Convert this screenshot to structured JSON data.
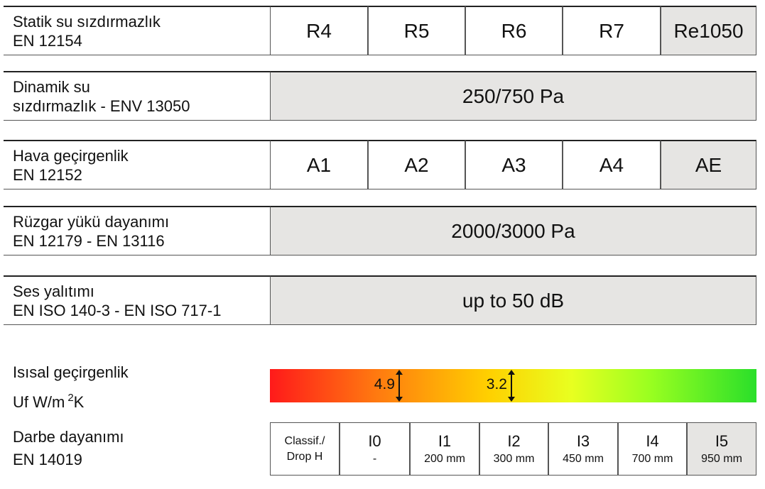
{
  "rows": [
    {
      "label": [
        "Statik su sızdırmazlık",
        "EN 12154"
      ],
      "cells": [
        "R4",
        "R5",
        "R6",
        "R7"
      ],
      "highlight": "Re1050"
    },
    {
      "label": [
        "Dinamik su",
        "sızdırmazlık - ENV 13050"
      ],
      "value": "250/750 Pa"
    },
    {
      "label": [
        "Hava geçirgenlik",
        "EN 12152"
      ],
      "cells": [
        "A1",
        "A2",
        "A3",
        "A4"
      ],
      "highlight": "AE"
    },
    {
      "label": [
        "Rüzgar yükü dayanımı",
        "EN 12179 - EN 13116"
      ],
      "value": "2000/3000 Pa"
    },
    {
      "label": [
        "Ses yalıtımı",
        "EN ISO 140-3 - EN ISO 717-1"
      ],
      "value": "up to 50 dB"
    }
  ],
  "thermal": {
    "label": "Isısal geçirgenlik",
    "unit": {
      "text": "Uf W/m",
      "sup": "2",
      "after": "K"
    },
    "markers": [
      4.9,
      3.2
    ]
  },
  "impact": {
    "label": [
      "Darbe dayanımı",
      "EN 14019"
    ],
    "header": [
      "Classif./",
      "Drop H"
    ],
    "classes": [
      {
        "name": "I0",
        "drop": "-"
      },
      {
        "name": "I1",
        "drop": "200 mm"
      },
      {
        "name": "I2",
        "drop": "300 mm"
      },
      {
        "name": "I3",
        "drop": "450 mm"
      },
      {
        "name": "I4",
        "drop": "700 mm"
      },
      {
        "name": "I5",
        "drop": "950 mm"
      }
    ]
  }
}
